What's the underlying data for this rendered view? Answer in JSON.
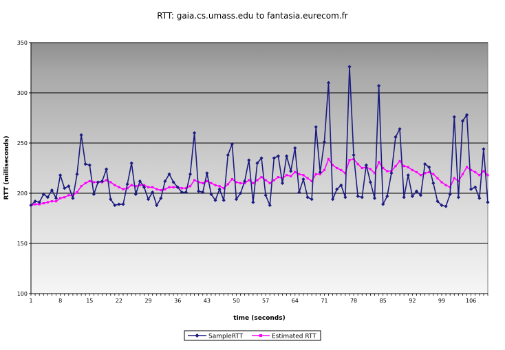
{
  "chart_data": {
    "type": "line",
    "title": "RTT: gaia.cs.umass.edu to fantasia.eurecom.fr",
    "xlabel": "time (seconds)",
    "ylabel": "RTT (milliseconds)",
    "ylim": [
      100,
      350
    ],
    "yticks": [
      100,
      150,
      200,
      250,
      300,
      350
    ],
    "x_tick_labels": [
      "1",
      "8",
      "15",
      "22",
      "29",
      "36",
      "43",
      "50",
      "57",
      "64",
      "71",
      "78",
      "85",
      "92",
      "99",
      "106"
    ],
    "grid": true,
    "legend_position": "bottom-center",
    "x": [
      1,
      2,
      3,
      4,
      5,
      6,
      7,
      8,
      9,
      10,
      11,
      12,
      13,
      14,
      15,
      16,
      17,
      18,
      19,
      20,
      21,
      22,
      23,
      24,
      25,
      26,
      27,
      28,
      29,
      30,
      31,
      32,
      33,
      34,
      35,
      36,
      37,
      38,
      39,
      40,
      41,
      42,
      43,
      44,
      45,
      46,
      47,
      48,
      49,
      50,
      51,
      52,
      53,
      54,
      55,
      56,
      57,
      58,
      59,
      60,
      61,
      62,
      63,
      64,
      65,
      66,
      67,
      68,
      69,
      70,
      71,
      72,
      73,
      74,
      75,
      76,
      77,
      78,
      79,
      80,
      81,
      82,
      83,
      84,
      85,
      86,
      87,
      88,
      89,
      90,
      91,
      92,
      93,
      94,
      95,
      96,
      97,
      98,
      99,
      100,
      101,
      102,
      103,
      104,
      105,
      106,
      107,
      108,
      109,
      110
    ],
    "series": [
      {
        "name": "SampleRTT",
        "color": "#1a1a80",
        "marker": "diamond",
        "values": [
          188,
          192,
          191,
          199,
          196,
          203,
          195,
          218,
          205,
          207,
          195,
          219,
          258,
          229,
          228,
          199,
          211,
          212,
          224,
          194,
          188,
          189,
          189,
          209,
          230,
          199,
          212,
          206,
          194,
          201,
          188,
          195,
          212,
          219,
          211,
          206,
          201,
          201,
          219,
          260,
          202,
          201,
          220,
          199,
          193,
          204,
          193,
          238,
          249,
          194,
          200,
          212,
          233,
          191,
          230,
          235,
          198,
          188,
          235,
          237,
          210,
          237,
          222,
          245,
          201,
          214,
          196,
          194,
          266,
          221,
          251,
          310,
          194,
          204,
          208,
          196,
          326,
          238,
          197,
          196,
          228,
          211,
          195,
          307,
          189,
          197,
          220,
          256,
          264,
          196,
          218,
          197,
          202,
          198,
          229,
          226,
          210,
          192,
          188,
          187,
          199,
          276,
          196,
          272,
          278,
          204,
          206,
          195,
          244,
          191
        ]
      },
      {
        "name": "Estimated RTT",
        "color": "#ff00ff",
        "marker": "square",
        "values": [
          188,
          189,
          189,
          190,
          191,
          192,
          192,
          195,
          196,
          198,
          198,
          201,
          207,
          210,
          212,
          211,
          211,
          211,
          213,
          211,
          208,
          206,
          204,
          205,
          208,
          207,
          208,
          208,
          206,
          206,
          204,
          203,
          204,
          206,
          206,
          206,
          205,
          205,
          207,
          213,
          211,
          210,
          212,
          210,
          208,
          207,
          205,
          209,
          214,
          211,
          210,
          210,
          213,
          210,
          213,
          216,
          213,
          210,
          213,
          216,
          215,
          218,
          217,
          221,
          219,
          218,
          215,
          212,
          219,
          219,
          223,
          234,
          228,
          225,
          223,
          220,
          233,
          234,
          229,
          225,
          226,
          224,
          220,
          231,
          225,
          222,
          222,
          227,
          232,
          227,
          226,
          223,
          221,
          218,
          220,
          221,
          219,
          215,
          211,
          208,
          206,
          215,
          212,
          219,
          226,
          223,
          221,
          218,
          222,
          218
        ]
      }
    ]
  }
}
